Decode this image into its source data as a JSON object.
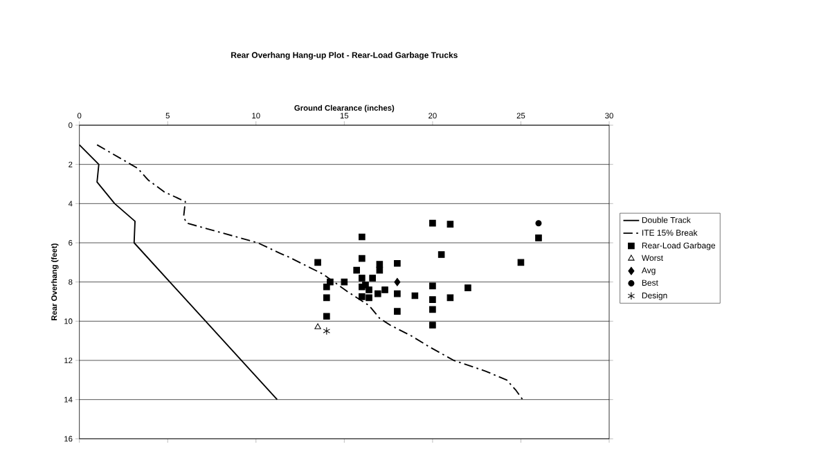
{
  "chart_data": {
    "type": "scatter",
    "title": "Rear Overhang Hang-up Plot - Rear-Load Garbage Trucks",
    "xlabel": "Ground Clearance (inches)",
    "ylabel": "Rear Overhang (feet)",
    "xlim": [
      0,
      30
    ],
    "ylim": [
      16,
      0
    ],
    "xticks": [
      0,
      5,
      10,
      15,
      20,
      25,
      30
    ],
    "yticks": [
      0,
      2,
      4,
      6,
      8,
      10,
      12,
      14,
      16
    ],
    "grid": "y",
    "legend": "right",
    "series": [
      {
        "name": "Double Track",
        "type": "line",
        "color": "#000000",
        "marker": "none",
        "line_style": "solid",
        "x": [
          0,
          1.1,
          1.0,
          2.0,
          3.15,
          3.1,
          11.2
        ],
        "values": [
          1.0,
          2.0,
          2.9,
          4.0,
          4.9,
          6.0,
          14.0
        ]
      },
      {
        "name": "ITE 15% Break",
        "type": "line",
        "color": "#000000",
        "marker": "none",
        "line_style": "dashed",
        "x": [
          1.0,
          3.3,
          3.9,
          4.8,
          6.0,
          5.9,
          6.1,
          7.9,
          10.1,
          11.4,
          11.8,
          13.8,
          15.2,
          16.4,
          17.0,
          17.6,
          18.8,
          19.8,
          21.2,
          23.0,
          24.2,
          24.7,
          25.1
        ],
        "values": [
          1.0,
          2.2,
          2.8,
          3.4,
          3.9,
          4.7,
          5.0,
          5.45,
          6.0,
          6.55,
          6.7,
          7.6,
          8.5,
          9.2,
          9.85,
          10.2,
          10.75,
          11.3,
          12.0,
          12.55,
          13.0,
          13.5,
          14.0
        ]
      },
      {
        "name": "Rear-Load Garbage",
        "color": "#000000",
        "marker": "square",
        "x": [
          20,
          21,
          16,
          20.5,
          13.5,
          16,
          17,
          17,
          18,
          15.7,
          14.2,
          14,
          15,
          16,
          16.2,
          16.6,
          16.4,
          16,
          16.4,
          16.9,
          17.3,
          16,
          14,
          14,
          18,
          18,
          19,
          20,
          20,
          20,
          20,
          21,
          22,
          25,
          26
        ],
        "values": [
          5.0,
          5.05,
          5.7,
          6.6,
          7.0,
          6.8,
          7.1,
          7.4,
          7.05,
          7.4,
          8.0,
          8.25,
          8.0,
          7.8,
          8.15,
          7.8,
          8.4,
          8.75,
          8.8,
          8.6,
          8.4,
          8.25,
          8.8,
          9.75,
          8.6,
          9.5,
          8.7,
          8.2,
          8.9,
          9.4,
          10.2,
          8.8,
          8.3,
          7.0,
          5.75
        ]
      },
      {
        "name": "Worst",
        "color": "#000000",
        "marker": "triangle",
        "x": [
          13.5
        ],
        "values": [
          10.3
        ]
      },
      {
        "name": "Avg",
        "color": "#000000",
        "marker": "diamond",
        "x": [
          18
        ],
        "values": [
          8.0
        ]
      },
      {
        "name": "Best",
        "color": "#000000",
        "marker": "circle",
        "x": [
          26
        ],
        "values": [
          5.0
        ]
      },
      {
        "name": "Design",
        "color": "#000000",
        "marker": "cross",
        "x": [
          14
        ],
        "values": [
          10.5
        ]
      }
    ]
  }
}
